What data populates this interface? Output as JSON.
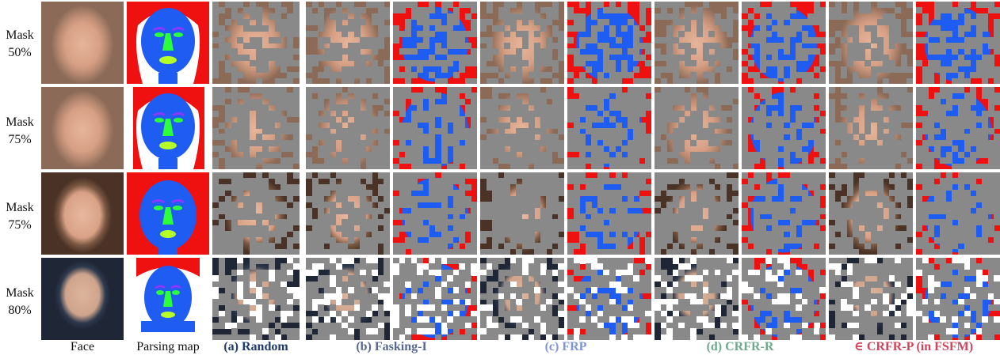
{
  "row_labels": [
    {
      "line1": "Mask",
      "line2": "50%"
    },
    {
      "line1": "Mask",
      "line2": "75%"
    },
    {
      "line1": "Mask",
      "line2": "75%"
    },
    {
      "line1": "Mask",
      "line2": "80%"
    }
  ],
  "captions": {
    "face": "Face",
    "parsing": "Parsing map",
    "random": "(a) Random",
    "fasking": "(b) Fasking-I",
    "frp": "(c) FRP",
    "crfr_r": "(d) CRFR-R",
    "crfr_p_symbol": "∈",
    "crfr_p": "CRFR-P (in FSFM)"
  },
  "colors": {
    "random": "#1f3a6b",
    "fasking": "#59688c",
    "frp": "#7f96d6",
    "crfr_r": "#6fa88d",
    "crfr_p": "#d2445c",
    "parse_blue": "#1f5cf2",
    "parse_red": "#ef1010",
    "parse_green": "#2bff3b",
    "parse_yellowgreen": "#b6ff26",
    "parse_purple": "#8a38ff",
    "mask_gray": "#898989"
  }
}
